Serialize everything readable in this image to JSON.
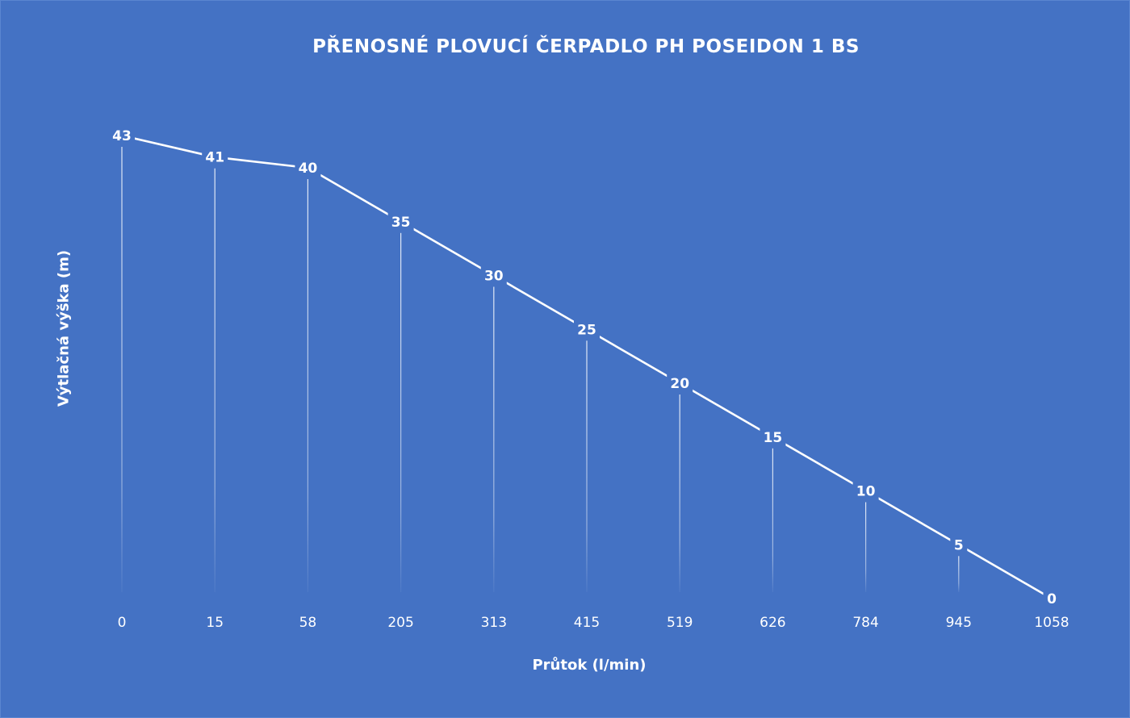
{
  "chart_data": {
    "type": "line",
    "title": "PŘENOSNÉ PLOVUCÍ ČERPADLO PH POSEIDON 1 BS",
    "xlabel": "Průtok (l/min)",
    "ylabel": "Výtlačná výška (m)",
    "categories": [
      "0",
      "15",
      "58",
      "205",
      "313",
      "415",
      "519",
      "626",
      "784",
      "945",
      "1058"
    ],
    "series": [
      {
        "values": [
          43,
          41,
          40,
          35,
          30,
          25,
          20,
          15,
          10,
          5,
          0
        ]
      }
    ],
    "ylim": [
      0,
      43
    ],
    "grid": false,
    "drop_lines": true,
    "data_labels": true,
    "legend": "none",
    "colors": {
      "background": "#4472C4",
      "line": "#ffffff",
      "text": "#ffffff"
    }
  }
}
